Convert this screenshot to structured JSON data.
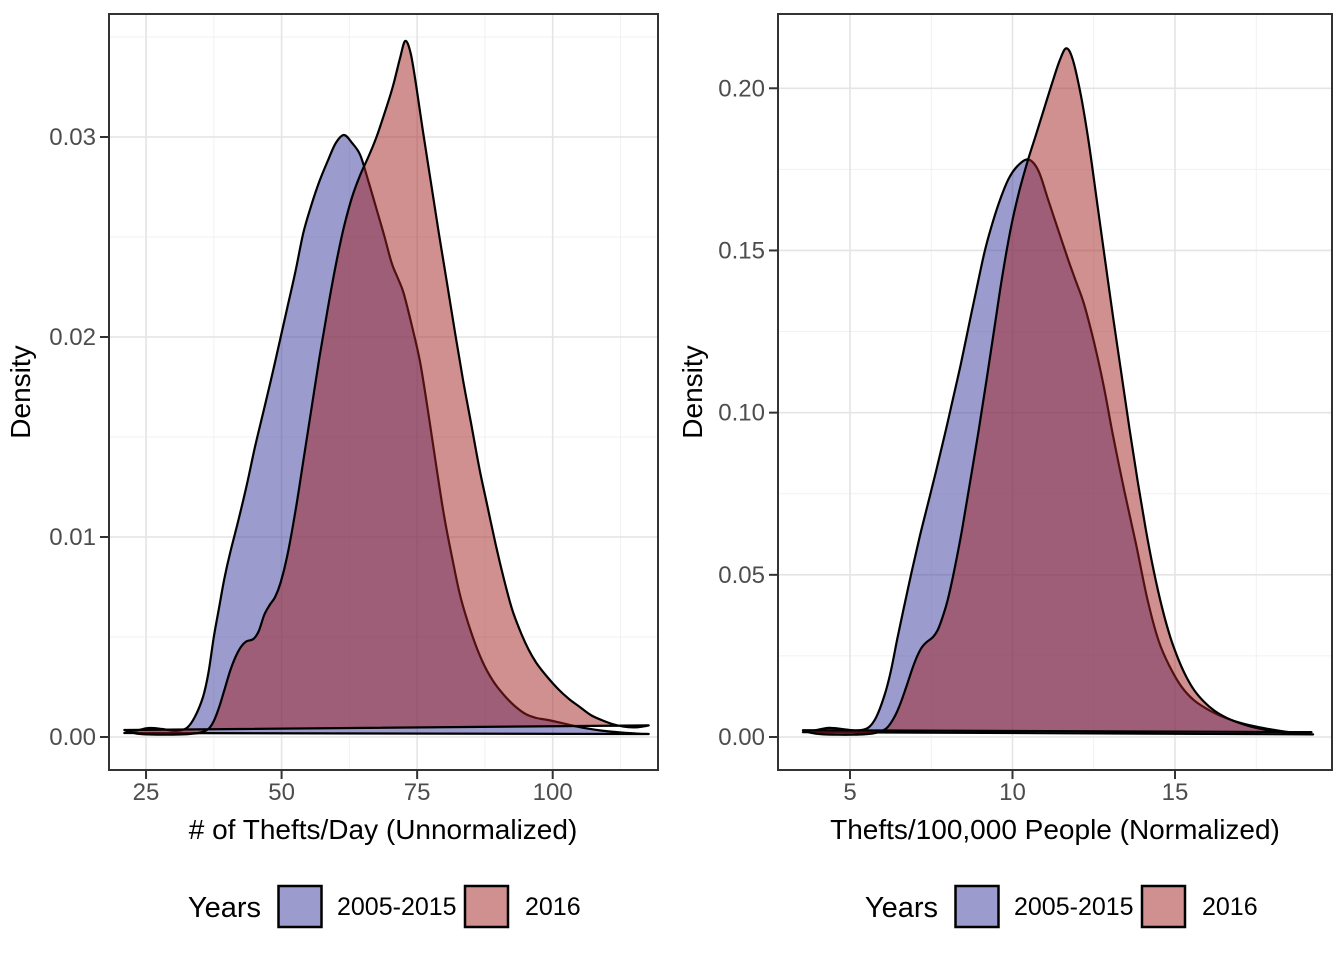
{
  "figure": {
    "background": "#ffffff",
    "legend_title": "Years",
    "series_names": [
      "2005-2015",
      "2016"
    ],
    "colors": {
      "series_2005_2015_fill": "rgba(55,55,155,0.5)",
      "series_2005_2015_key": "#9B9BCD",
      "series_2016_fill": "rgba(161,33,33,0.5)",
      "series_2016_key": "#D09090",
      "overlap_seen": "#955C77",
      "outline": "#000000",
      "tick_text": "#4d4d4d"
    }
  },
  "chart_data": [
    {
      "type": "area",
      "subtype": "density",
      "title": "",
      "xlabel": "# of Thefts/Day (Unnormalized)",
      "ylabel": "Density",
      "legend_title": "Years",
      "legend_position": "bottom",
      "grid": true,
      "xlim": [
        18.17,
        119.42
      ],
      "ylim": [
        -0.00165,
        0.03615
      ],
      "x_ticks": [
        25,
        50,
        75,
        100
      ],
      "x_tick_labels": [
        "25",
        "50",
        "75",
        "100"
      ],
      "x_minor": [
        37.5,
        62.5,
        87.5,
        112.5
      ],
      "y_ticks": [
        0.0,
        0.01,
        0.02,
        0.03
      ],
      "y_tick_labels": [
        "0.00",
        "0.01",
        "0.02",
        "0.03"
      ],
      "y_minor": [
        0.005,
        0.015,
        0.025,
        0.035
      ],
      "series": [
        {
          "name": "2005-2015",
          "fill": "rgba(55,55,155,0.5)",
          "key_color": "#9B9BCD",
          "peak": [
            61.5,
            0.0301
          ],
          "points": [
            [
              21,
              0.0002
            ],
            [
              23,
              0.0003
            ],
            [
              25.5,
              0.00045
            ],
            [
              28,
              0.0004
            ],
            [
              30.5,
              0.0003
            ],
            [
              32.5,
              0.00045
            ],
            [
              34,
              0.001
            ],
            [
              35.5,
              0.002
            ],
            [
              36.5,
              0.0032
            ],
            [
              37.5,
              0.005
            ],
            [
              38.5,
              0.0065
            ],
            [
              39.5,
              0.008
            ],
            [
              40.5,
              0.0092
            ],
            [
              42,
              0.0108
            ],
            [
              43.5,
              0.0125
            ],
            [
              45,
              0.0144
            ],
            [
              46.5,
              0.0161
            ],
            [
              48,
              0.0178
            ],
            [
              49.5,
              0.0196
            ],
            [
              51,
              0.0214
            ],
            [
              52.5,
              0.0232
            ],
            [
              54,
              0.0252
            ],
            [
              55.5,
              0.0266
            ],
            [
              57,
              0.0278
            ],
            [
              58.5,
              0.0288
            ],
            [
              60,
              0.0297
            ],
            [
              61.5,
              0.0301
            ],
            [
              63,
              0.0297
            ],
            [
              64.5,
              0.0291
            ],
            [
              66,
              0.0278
            ],
            [
              67.5,
              0.0264
            ],
            [
              69,
              0.025
            ],
            [
              70.3,
              0.0237
            ],
            [
              71.5,
              0.0229
            ],
            [
              72.5,
              0.0222
            ],
            [
              74,
              0.0206
            ],
            [
              75.5,
              0.0188
            ],
            [
              77,
              0.0163
            ],
            [
              78.5,
              0.0136
            ],
            [
              80,
              0.011
            ],
            [
              81.5,
              0.0089
            ],
            [
              83,
              0.007
            ],
            [
              85,
              0.0052
            ],
            [
              87,
              0.0038
            ],
            [
              89,
              0.0028
            ],
            [
              91,
              0.0021
            ],
            [
              93,
              0.00155
            ],
            [
              95,
              0.00115
            ],
            [
              97,
              0.00095
            ],
            [
              98.5,
              0.00088
            ],
            [
              100,
              0.0008
            ],
            [
              102,
              0.00068
            ],
            [
              104,
              0.00055
            ],
            [
              106.5,
              0.00042
            ],
            [
              109,
              0.00032
            ],
            [
              112,
              0.00024
            ],
            [
              115,
              0.00018
            ],
            [
              117.7,
              0.00015
            ]
          ]
        },
        {
          "name": "2016",
          "fill": "rgba(161,33,33,0.5)",
          "key_color": "#D09090",
          "peak": [
            72.8,
            0.0348
          ],
          "points": [
            [
              21,
              0.00035
            ],
            [
              22.5,
              0.00022
            ],
            [
              24,
              0.00015
            ],
            [
              27,
              0.00012
            ],
            [
              30,
              0.00012
            ],
            [
              33,
              0.00015
            ],
            [
              35,
              0.00022
            ],
            [
              36.5,
              0.0004
            ],
            [
              37.5,
              0.0008
            ],
            [
              38.5,
              0.0015
            ],
            [
              39.5,
              0.0024
            ],
            [
              40.5,
              0.0033
            ],
            [
              41.5,
              0.004
            ],
            [
              42.5,
              0.0045
            ],
            [
              43.5,
              0.00478
            ],
            [
              44.8,
              0.0049
            ],
            [
              45.8,
              0.0053
            ],
            [
              46.8,
              0.0061
            ],
            [
              47.8,
              0.0066
            ],
            [
              48.8,
              0.007
            ],
            [
              49.8,
              0.0077
            ],
            [
              51,
              0.009
            ],
            [
              52.5,
              0.0112
            ],
            [
              54,
              0.0138
            ],
            [
              55.5,
              0.0164
            ],
            [
              57,
              0.019
            ],
            [
              58.5,
              0.0214
            ],
            [
              60,
              0.0236
            ],
            [
              61.5,
              0.0255
            ],
            [
              63,
              0.027
            ],
            [
              64.5,
              0.0281
            ],
            [
              66,
              0.029
            ],
            [
              67.5,
              0.03
            ],
            [
              69,
              0.0312
            ],
            [
              70.5,
              0.0325
            ],
            [
              71.8,
              0.0339
            ],
            [
              72.8,
              0.0348
            ],
            [
              73.8,
              0.0342
            ],
            [
              74.8,
              0.0326
            ],
            [
              76,
              0.0304
            ],
            [
              77.5,
              0.0278
            ],
            [
              79,
              0.0252
            ],
            [
              80.5,
              0.0227
            ],
            [
              82,
              0.0202
            ],
            [
              83.5,
              0.0178
            ],
            [
              85,
              0.0156
            ],
            [
              86.5,
              0.0134
            ],
            [
              88,
              0.0115
            ],
            [
              89.5,
              0.0096
            ],
            [
              91,
              0.0079
            ],
            [
              92.5,
              0.0064
            ],
            [
              94,
              0.0053
            ],
            [
              95.5,
              0.0044
            ],
            [
              97,
              0.0037
            ],
            [
              99,
              0.003
            ],
            [
              101,
              0.0024
            ],
            [
              103,
              0.0019
            ],
            [
              105,
              0.0015
            ],
            [
              107,
              0.0011
            ],
            [
              109,
              0.00085
            ],
            [
              111,
              0.00065
            ],
            [
              113,
              0.00052
            ],
            [
              115,
              0.00048
            ],
            [
              116.5,
              0.00052
            ],
            [
              117.7,
              0.00058
            ]
          ]
        }
      ]
    },
    {
      "type": "area",
      "subtype": "density",
      "title": "",
      "xlabel": "Thefts/100,000 People (Normalized)",
      "ylabel": "Density",
      "legend_title": "Years",
      "legend_position": "bottom",
      "grid": true,
      "xlim": [
        2.785,
        19.83
      ],
      "ylim": [
        -0.01017,
        0.2229
      ],
      "x_ticks": [
        5,
        10,
        15
      ],
      "x_tick_labels": [
        "5",
        "10",
        "15"
      ],
      "x_minor": [
        7.5,
        12.5,
        17.5
      ],
      "y_ticks": [
        0.0,
        0.05,
        0.1,
        0.15,
        0.2
      ],
      "y_tick_labels": [
        "0.00",
        "0.05",
        "0.10",
        "0.15",
        "0.20"
      ],
      "y_minor": [
        0.025,
        0.075,
        0.125,
        0.175
      ],
      "series": [
        {
          "name": "2005-2015",
          "fill": "rgba(55,55,155,0.5)",
          "key_color": "#9B9BCD",
          "peak": [
            10.5,
            0.178
          ],
          "points": [
            [
              3.55,
              0.0015
            ],
            [
              3.9,
              0.002
            ],
            [
              4.35,
              0.0028
            ],
            [
              4.8,
              0.0024
            ],
            [
              5.2,
              0.002
            ],
            [
              5.55,
              0.0028
            ],
            [
              5.8,
              0.006
            ],
            [
              6.05,
              0.0125
            ],
            [
              6.25,
              0.02
            ],
            [
              6.45,
              0.03
            ],
            [
              6.65,
              0.0395
            ],
            [
              6.9,
              0.051
            ],
            [
              7.15,
              0.062
            ],
            [
              7.4,
              0.072
            ],
            [
              7.65,
              0.082
            ],
            [
              7.9,
              0.0925
            ],
            [
              8.15,
              0.1035
            ],
            [
              8.4,
              0.1145
            ],
            [
              8.65,
              0.1265
            ],
            [
              8.9,
              0.1385
            ],
            [
              9.15,
              0.15
            ],
            [
              9.4,
              0.159
            ],
            [
              9.65,
              0.1665
            ],
            [
              9.9,
              0.1725
            ],
            [
              10.2,
              0.1765
            ],
            [
              10.5,
              0.178
            ],
            [
              10.8,
              0.1745
            ],
            [
              11.1,
              0.1655
            ],
            [
              11.4,
              0.1565
            ],
            [
              11.7,
              0.1475
            ],
            [
              11.95,
              0.1405
            ],
            [
              12.2,
              0.1335
            ],
            [
              12.5,
              0.122
            ],
            [
              12.8,
              0.1085
            ],
            [
              13.1,
              0.0925
            ],
            [
              13.45,
              0.0755
            ],
            [
              13.8,
              0.0595
            ],
            [
              14.15,
              0.0425
            ],
            [
              14.5,
              0.0295
            ],
            [
              14.85,
              0.0215
            ],
            [
              15.2,
              0.0155
            ],
            [
              15.6,
              0.0112
            ],
            [
              16.1,
              0.008
            ],
            [
              16.6,
              0.0057
            ],
            [
              17.1,
              0.0041
            ],
            [
              17.6,
              0.003
            ],
            [
              18.1,
              0.0021
            ],
            [
              18.6,
              0.0014
            ],
            [
              19.25,
              0.0008
            ]
          ]
        },
        {
          "name": "2016",
          "fill": "rgba(161,33,33,0.5)",
          "key_color": "#D09090",
          "peak": [
            11.65,
            0.2123
          ],
          "points": [
            [
              3.55,
              0.0021
            ],
            [
              3.8,
              0.0013
            ],
            [
              4.1,
              0.0009
            ],
            [
              4.6,
              0.0007
            ],
            [
              5.1,
              0.0007
            ],
            [
              5.5,
              0.0009
            ],
            [
              5.8,
              0.0013
            ],
            [
              6.1,
              0.0025
            ],
            [
              6.3,
              0.005
            ],
            [
              6.5,
              0.009
            ],
            [
              6.7,
              0.0145
            ],
            [
              6.9,
              0.0205
            ],
            [
              7.05,
              0.0245
            ],
            [
              7.2,
              0.0275
            ],
            [
              7.35,
              0.0292
            ],
            [
              7.55,
              0.0308
            ],
            [
              7.7,
              0.033
            ],
            [
              7.85,
              0.037
            ],
            [
              8.0,
              0.042
            ],
            [
              8.2,
              0.051
            ],
            [
              8.45,
              0.064
            ],
            [
              8.7,
              0.079
            ],
            [
              8.95,
              0.094
            ],
            [
              9.2,
              0.11
            ],
            [
              9.45,
              0.1265
            ],
            [
              9.7,
              0.143
            ],
            [
              9.95,
              0.157
            ],
            [
              10.2,
              0.168
            ],
            [
              10.45,
              0.177
            ],
            [
              10.7,
              0.185
            ],
            [
              10.95,
              0.193
            ],
            [
              11.2,
              0.201
            ],
            [
              11.45,
              0.2085
            ],
            [
              11.65,
              0.2123
            ],
            [
              11.85,
              0.209
            ],
            [
              12.1,
              0.198
            ],
            [
              12.35,
              0.183
            ],
            [
              12.6,
              0.165
            ],
            [
              12.85,
              0.147
            ],
            [
              13.1,
              0.129
            ],
            [
              13.35,
              0.112
            ],
            [
              13.6,
              0.095
            ],
            [
              13.85,
              0.079
            ],
            [
              14.1,
              0.064
            ],
            [
              14.35,
              0.051
            ],
            [
              14.6,
              0.04
            ],
            [
              14.85,
              0.031
            ],
            [
              15.1,
              0.024
            ],
            [
              15.35,
              0.0185
            ],
            [
              15.6,
              0.0143
            ],
            [
              15.9,
              0.0108
            ],
            [
              16.2,
              0.0082
            ],
            [
              16.55,
              0.0061
            ],
            [
              16.9,
              0.0046
            ],
            [
              17.3,
              0.0033
            ],
            [
              17.7,
              0.0024
            ],
            [
              18.1,
              0.0017
            ],
            [
              18.5,
              0.0013
            ],
            [
              18.9,
              0.0012
            ],
            [
              19.2,
              0.0015
            ]
          ]
        }
      ]
    }
  ]
}
